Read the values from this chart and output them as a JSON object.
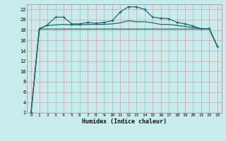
{
  "xlabel": "Humidex (Indice chaleur)",
  "bg_color": "#c8ecec",
  "grid_color": "#b0d8d8",
  "line_color": "#1a6b6b",
  "xlim": [
    -0.5,
    23.5
  ],
  "ylim": [
    2,
    23
  ],
  "xticks": [
    0,
    1,
    2,
    3,
    4,
    5,
    6,
    7,
    8,
    9,
    10,
    11,
    12,
    13,
    14,
    15,
    16,
    17,
    18,
    19,
    20,
    21,
    22,
    23
  ],
  "yticks": [
    2,
    4,
    6,
    8,
    10,
    12,
    14,
    16,
    18,
    20,
    22
  ],
  "series1_x": [
    0,
    1,
    2,
    3,
    4,
    5,
    6,
    7,
    8,
    9,
    10,
    11,
    12,
    13,
    14,
    15,
    16,
    17,
    18,
    19,
    20,
    21,
    22,
    23
  ],
  "series1_y": [
    2.2,
    18.2,
    19.0,
    20.5,
    20.5,
    19.2,
    19.2,
    19.5,
    19.3,
    19.5,
    19.8,
    21.5,
    22.5,
    22.5,
    22.0,
    20.5,
    20.3,
    20.2,
    19.5,
    19.2,
    18.8,
    18.2,
    18.3,
    14.8
  ],
  "series2_x": [
    0,
    1,
    2,
    3,
    4,
    5,
    6,
    7,
    8,
    9,
    10,
    11,
    12,
    13,
    14,
    15,
    16,
    17,
    18,
    19,
    20,
    21,
    22,
    23
  ],
  "series2_y": [
    2.2,
    18.3,
    18.9,
    19.0,
    19.1,
    19.0,
    19.0,
    19.1,
    19.1,
    19.1,
    19.2,
    19.4,
    19.8,
    19.6,
    19.6,
    19.4,
    19.1,
    19.1,
    18.9,
    18.7,
    18.5,
    18.3,
    18.2,
    14.8
  ],
  "series3_x": [
    0,
    1,
    22,
    23
  ],
  "series3_y": [
    2.2,
    18.2,
    18.2,
    14.8
  ],
  "marker": "+"
}
